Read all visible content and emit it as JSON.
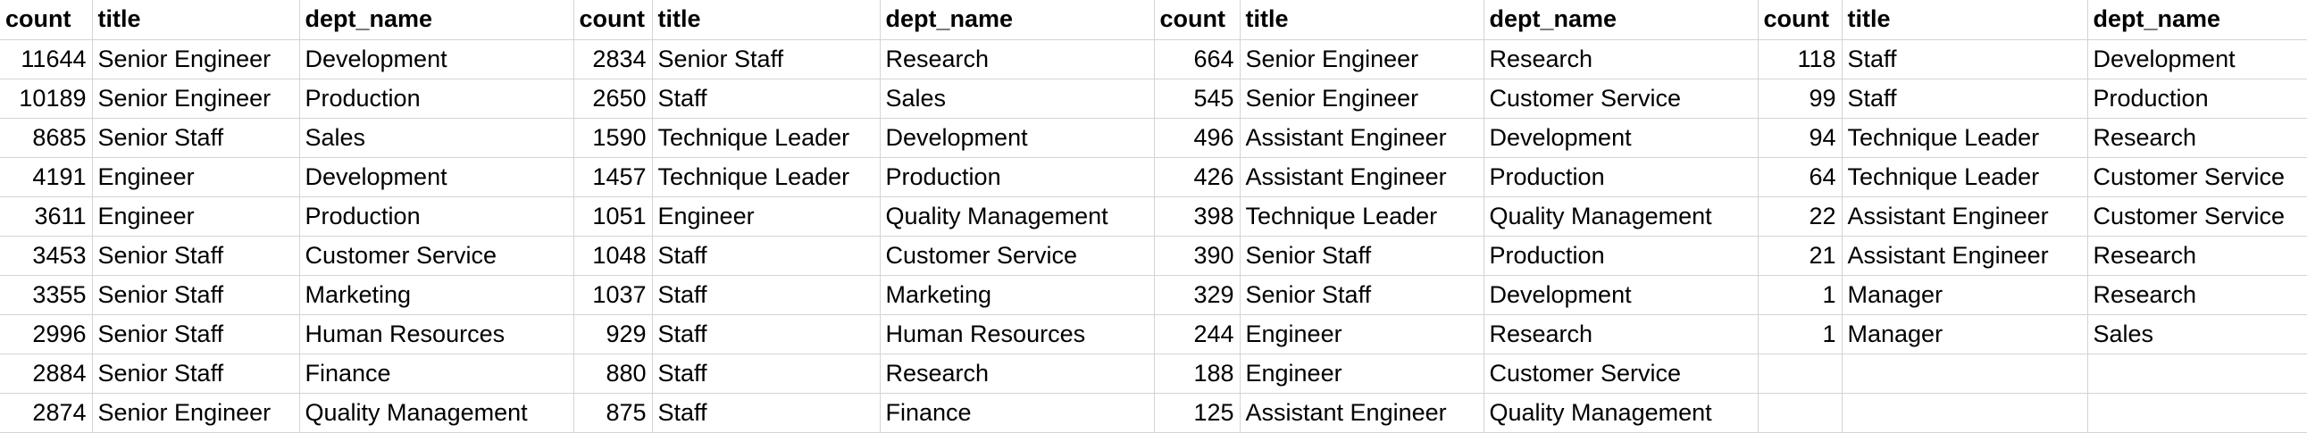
{
  "headers": [
    "count",
    "title",
    "dept_name"
  ],
  "blocks": [
    {
      "rows": [
        [
          "11644",
          "Senior Engineer",
          "Development"
        ],
        [
          "10189",
          "Senior Engineer",
          "Production"
        ],
        [
          "8685",
          "Senior Staff",
          "Sales"
        ],
        [
          "4191",
          "Engineer",
          "Development"
        ],
        [
          "3611",
          "Engineer",
          "Production"
        ],
        [
          "3453",
          "Senior Staff",
          "Customer Service"
        ],
        [
          "3355",
          "Senior Staff",
          "Marketing"
        ],
        [
          "2996",
          "Senior Staff",
          "Human Resources"
        ],
        [
          "2884",
          "Senior Staff",
          "Finance"
        ],
        [
          "2874",
          "Senior Engineer",
          "Quality Management"
        ]
      ]
    },
    {
      "rows": [
        [
          "2834",
          "Senior Staff",
          "Research"
        ],
        [
          "2650",
          "Staff",
          "Sales"
        ],
        [
          "1590",
          "Technique Leader",
          "Development"
        ],
        [
          "1457",
          "Technique Leader",
          "Production"
        ],
        [
          "1051",
          "Engineer",
          "Quality Management"
        ],
        [
          "1048",
          "Staff",
          "Customer Service"
        ],
        [
          "1037",
          "Staff",
          "Marketing"
        ],
        [
          "929",
          "Staff",
          "Human Resources"
        ],
        [
          "880",
          "Staff",
          "Research"
        ],
        [
          "875",
          "Staff",
          "Finance"
        ]
      ]
    },
    {
      "rows": [
        [
          "664",
          "Senior Engineer",
          "Research"
        ],
        [
          "545",
          "Senior Engineer",
          "Customer Service"
        ],
        [
          "496",
          "Assistant Engineer",
          "Development"
        ],
        [
          "426",
          "Assistant Engineer",
          "Production"
        ],
        [
          "398",
          "Technique Leader",
          "Quality Management"
        ],
        [
          "390",
          "Senior Staff",
          "Production"
        ],
        [
          "329",
          "Senior Staff",
          "Development"
        ],
        [
          "244",
          "Engineer",
          "Research"
        ],
        [
          "188",
          "Engineer",
          "Customer Service"
        ],
        [
          "125",
          "Assistant Engineer",
          "Quality Management"
        ]
      ]
    },
    {
      "rows": [
        [
          "118",
          "Staff",
          "Development"
        ],
        [
          "99",
          "Staff",
          "Production"
        ],
        [
          "94",
          "Technique Leader",
          "Research"
        ],
        [
          "64",
          "Technique Leader",
          "Customer Service"
        ],
        [
          "22",
          "Assistant Engineer",
          "Customer Service"
        ],
        [
          "21",
          "Assistant Engineer",
          "Research"
        ],
        [
          "1",
          "Manager",
          "Research"
        ],
        [
          "1",
          "Manager",
          "Sales"
        ],
        [
          "",
          "",
          ""
        ],
        [
          "",
          "",
          ""
        ]
      ]
    }
  ]
}
